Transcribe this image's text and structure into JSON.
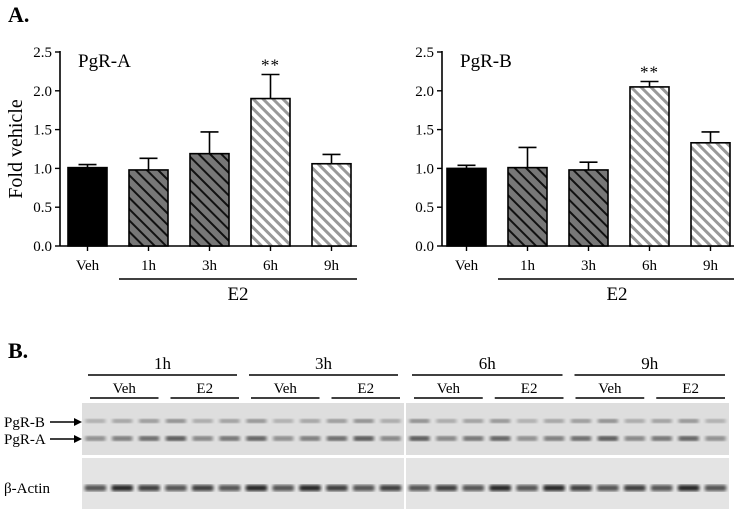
{
  "panel_a_label": "A.",
  "panel_b_label": "B.",
  "chart_data": [
    {
      "type": "bar",
      "title": "PgR-A",
      "ylabel": "Fold vehicle",
      "xlabel": "",
      "group_label": "E2",
      "categories": [
        "Veh",
        "1h",
        "3h",
        "6h",
        "9h"
      ],
      "values": [
        1.01,
        0.98,
        1.19,
        1.9,
        1.06
      ],
      "errors": [
        0.04,
        0.15,
        0.28,
        0.31,
        0.12
      ],
      "ylim": [
        0,
        2.5
      ],
      "yticks": [
        "0.0",
        "0.5",
        "1.0",
        "1.5",
        "2.0",
        "2.5"
      ],
      "annotations": [
        {
          "category": "6h",
          "text": "**"
        }
      ],
      "bar_fills": [
        "solid-black",
        "hatch-dark",
        "hatch-dark",
        "hatch-light",
        "hatch-light"
      ]
    },
    {
      "type": "bar",
      "title": "PgR-B",
      "ylabel": "",
      "xlabel": "",
      "group_label": "E2",
      "categories": [
        "Veh",
        "1h",
        "3h",
        "6h",
        "9h"
      ],
      "values": [
        1.0,
        1.01,
        0.98,
        2.05,
        1.33
      ],
      "errors": [
        0.04,
        0.26,
        0.1,
        0.07,
        0.14
      ],
      "ylim": [
        0,
        2.5
      ],
      "yticks": [
        "0.0",
        "0.5",
        "1.0",
        "1.5",
        "2.0",
        "2.5"
      ],
      "annotations": [
        {
          "category": "6h",
          "text": "**"
        }
      ],
      "bar_fills": [
        "solid-black",
        "hatch-dark",
        "hatch-dark",
        "hatch-light",
        "hatch-light"
      ]
    }
  ],
  "blot": {
    "time_groups": [
      "1h",
      "3h",
      "6h",
      "9h"
    ],
    "treatments": [
      "Veh",
      "E2",
      "Veh",
      "E2",
      "Veh",
      "E2",
      "Veh",
      "E2"
    ],
    "row_labels": [
      "PgR-B",
      "PgR-A",
      "β-Actin"
    ]
  }
}
